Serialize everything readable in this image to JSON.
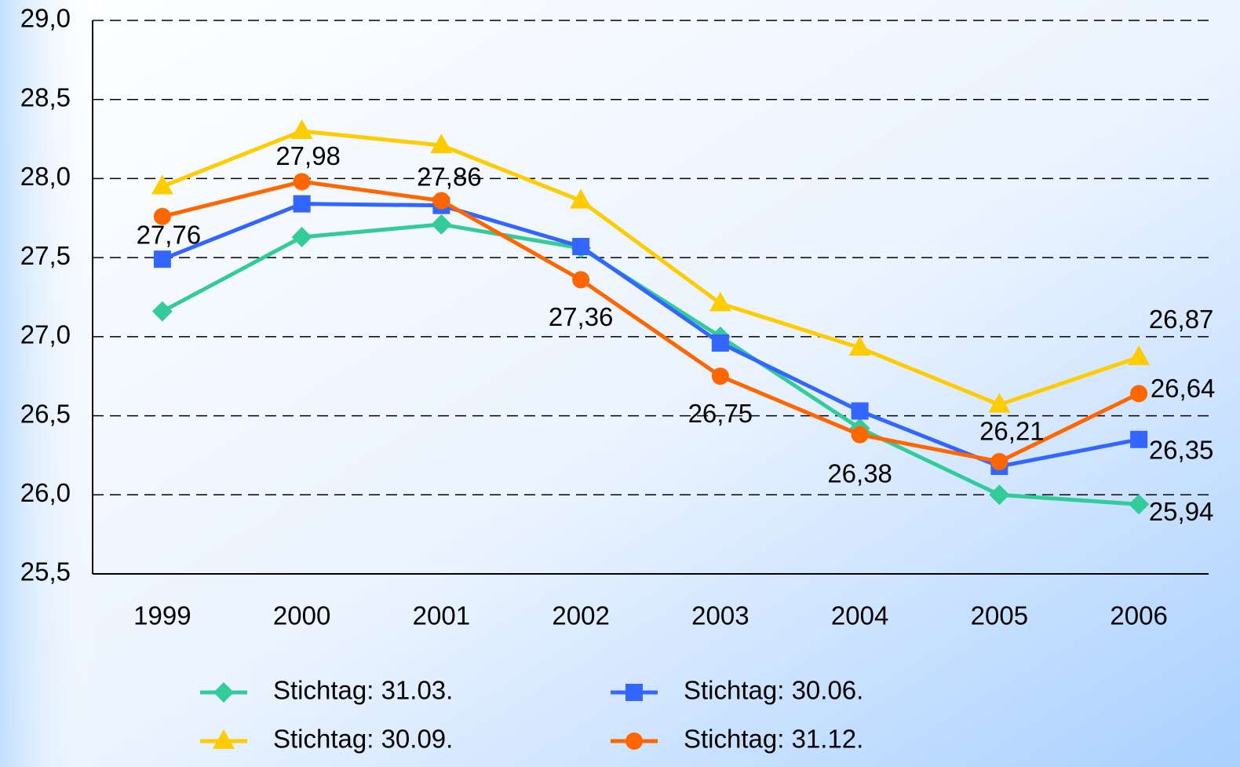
{
  "chart_data": {
    "type": "line",
    "categories": [
      "1999",
      "2000",
      "2001",
      "2002",
      "2003",
      "2004",
      "2005",
      "2006"
    ],
    "ylim": [
      25.5,
      29.0
    ],
    "yticks": [
      {
        "value": 25.5,
        "label": "25,5"
      },
      {
        "value": 26.0,
        "label": "26,0"
      },
      {
        "value": 26.5,
        "label": "26,5"
      },
      {
        "value": 27.0,
        "label": "27,0"
      },
      {
        "value": 27.5,
        "label": "27,5"
      },
      {
        "value": 28.0,
        "label": "28,0"
      },
      {
        "value": 28.5,
        "label": "28,5"
      },
      {
        "value": 29.0,
        "label": "29,0"
      }
    ],
    "grid": true,
    "legend": "bottom",
    "series": [
      {
        "name": "Stichtag: 31.03.",
        "color": "#33cc99",
        "marker": "diamond",
        "values": [
          27.16,
          27.63,
          27.71,
          27.56,
          27.0,
          26.42,
          26.0,
          25.94
        ],
        "value_labels": [
          null,
          null,
          null,
          null,
          null,
          null,
          null,
          "25,94"
        ]
      },
      {
        "name": "Stichtag: 30.06.",
        "color": "#3366ff",
        "marker": "square",
        "values": [
          27.49,
          27.84,
          27.83,
          27.57,
          26.96,
          26.53,
          26.18,
          26.35
        ],
        "value_labels": [
          null,
          null,
          null,
          null,
          null,
          null,
          null,
          "26,35"
        ]
      },
      {
        "name": "Stichtag: 30.09.",
        "color": "#ffcc00",
        "marker": "triangle",
        "values": [
          27.95,
          28.3,
          28.21,
          27.86,
          27.21,
          26.93,
          26.57,
          26.87
        ],
        "value_labels": [
          null,
          null,
          null,
          null,
          null,
          null,
          null,
          "26,87"
        ]
      },
      {
        "name": "Stichtag: 31.12.",
        "color": "#ff6600",
        "marker": "circle",
        "values": [
          27.76,
          27.98,
          27.86,
          27.36,
          26.75,
          26.38,
          26.21,
          26.64
        ],
        "value_labels": [
          "27,76",
          "27,98",
          "27,86",
          "27,36",
          "26,75",
          "26,38",
          "26,21",
          "26,64"
        ]
      }
    ]
  }
}
